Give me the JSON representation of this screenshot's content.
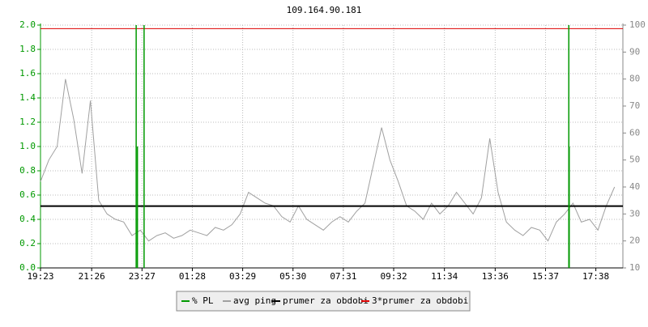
{
  "chart_data": {
    "type": "line",
    "title": "109.164.90.181",
    "xlim": [
      0,
      1400
    ],
    "xticks": [
      {
        "value": 0,
        "label": "19:23"
      },
      {
        "value": 123,
        "label": "21:26"
      },
      {
        "value": 244,
        "label": "23:27"
      },
      {
        "value": 365,
        "label": "01:28"
      },
      {
        "value": 486,
        "label": "03:29"
      },
      {
        "value": 607,
        "label": "05:30"
      },
      {
        "value": 728,
        "label": "07:31"
      },
      {
        "value": 849,
        "label": "09:32"
      },
      {
        "value": 971,
        "label": "11:34"
      },
      {
        "value": 1093,
        "label": "13:36"
      },
      {
        "value": 1214,
        "label": "15:37"
      },
      {
        "value": 1335,
        "label": "17:38"
      }
    ],
    "ylim": [
      0,
      2
    ],
    "yticks": [
      {
        "value": 0,
        "label": "0.0"
      },
      0.2,
      0.4,
      0.6,
      0.8,
      {
        "value": 1,
        "label": "1.0"
      },
      1.2,
      1.4,
      1.6,
      1.8,
      {
        "value": 2,
        "label": "2.0"
      }
    ],
    "y2lim": [
      10,
      100
    ],
    "y2ticks": [
      10,
      20,
      30,
      40,
      50,
      60,
      70,
      80,
      90,
      100
    ],
    "grid": true,
    "series": [
      {
        "name": "% PL",
        "color": "#009900",
        "kind": "spike",
        "x": [
          230,
          233,
          249,
          1270,
          1271
        ],
        "values": [
          2,
          1,
          2,
          2,
          1
        ]
      },
      {
        "name": "avg ping",
        "color": "#a0a0a0",
        "kind": "line",
        "axis": "y2",
        "x": [
          0,
          20,
          40,
          60,
          80,
          100,
          120,
          140,
          160,
          180,
          200,
          220,
          240,
          260,
          280,
          300,
          320,
          340,
          360,
          380,
          400,
          420,
          440,
          460,
          480,
          500,
          520,
          540,
          560,
          580,
          600,
          620,
          640,
          660,
          680,
          700,
          720,
          740,
          760,
          780,
          800,
          820,
          840,
          860,
          880,
          900,
          920,
          940,
          960,
          980,
          1000,
          1020,
          1040,
          1060,
          1080,
          1100,
          1120,
          1140,
          1160,
          1180,
          1200,
          1220,
          1240,
          1260,
          1280,
          1300,
          1320,
          1340,
          1360,
          1380
        ],
        "values": [
          42,
          50,
          55,
          80,
          65,
          45,
          72,
          35,
          30,
          28,
          27,
          22,
          24,
          20,
          22,
          23,
          21,
          22,
          24,
          23,
          22,
          25,
          24,
          26,
          30,
          38,
          36,
          34,
          33,
          29,
          27,
          33,
          28,
          26,
          24,
          27,
          29,
          27,
          31,
          34,
          48,
          62,
          50,
          42,
          33,
          31,
          28,
          34,
          30,
          33,
          38,
          34,
          30,
          36,
          58,
          38,
          27,
          24,
          22,
          25,
          24,
          20,
          27,
          30,
          34,
          27,
          28,
          24,
          33,
          40
        ]
      },
      {
        "name": "prumer za obdobi",
        "color": "#000000",
        "kind": "hline",
        "axis": "y2",
        "values": [
          32.9
        ]
      },
      {
        "name": "3*prumer za obdobi",
        "color": "#dd0000",
        "kind": "hline",
        "axis": "y2",
        "values": [
          98.7
        ]
      }
    ]
  }
}
